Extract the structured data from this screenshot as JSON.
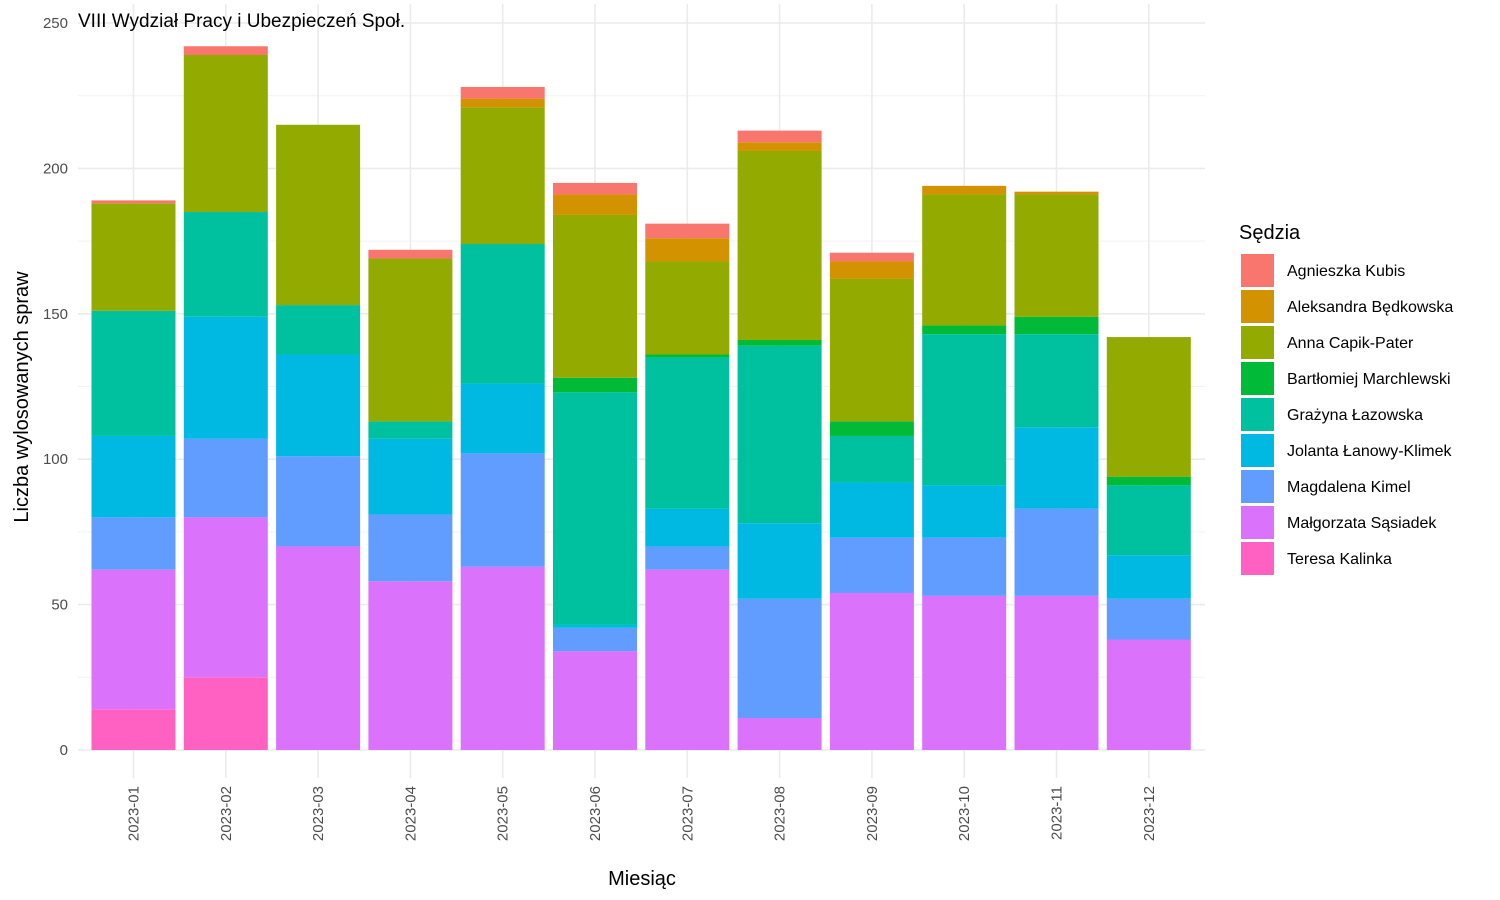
{
  "chart_data": {
    "type": "bar",
    "stacked": true,
    "title": "VIII Wydział Pracy i Ubezpieczeń Społ.",
    "xlabel": "Miesiąc",
    "ylabel": "Liczba wylosowanych spraw",
    "ylim": [
      0,
      250
    ],
    "yticks": [
      0,
      50,
      100,
      150,
      200,
      250
    ],
    "grid": true,
    "legend_title": "Sędzia",
    "legend_position": "right",
    "categories": [
      "2023-01",
      "2023-02",
      "2023-03",
      "2023-04",
      "2023-05",
      "2023-06",
      "2023-07",
      "2023-08",
      "2023-09",
      "2023-10",
      "2023-11",
      "2023-12"
    ],
    "series": [
      {
        "name": "Teresa Kalinka",
        "color": "#FF61C3",
        "values": [
          14,
          25,
          0,
          0,
          0,
          0,
          0,
          0,
          0,
          0,
          0,
          0
        ]
      },
      {
        "name": "Małgorzata Sąsiadek",
        "color": "#DB72FB",
        "values": [
          48,
          55,
          70,
          58,
          63,
          34,
          62,
          11,
          54,
          53,
          53,
          38
        ]
      },
      {
        "name": "Magdalena Kimel",
        "color": "#619CFF",
        "values": [
          18,
          27,
          31,
          23,
          39,
          8,
          8,
          41,
          19,
          20,
          30,
          14
        ]
      },
      {
        "name": "Jolanta Łanowy-Klimek",
        "color": "#00B9E3",
        "values": [
          28,
          42,
          35,
          26,
          24,
          1,
          13,
          26,
          19,
          18,
          28,
          15
        ]
      },
      {
        "name": "Grażyna Łazowska",
        "color": "#00C19F",
        "values": [
          43,
          36,
          17,
          6,
          48,
          80,
          52,
          61,
          16,
          52,
          32,
          24
        ]
      },
      {
        "name": "Bartłomiej Marchlewski",
        "color": "#00BA38",
        "values": [
          0,
          0,
          0,
          0,
          0,
          5,
          1,
          2,
          5,
          3,
          6,
          3
        ]
      },
      {
        "name": "Anna Capik-Pater",
        "color": "#93AA00",
        "values": [
          37,
          54,
          62,
          56,
          47,
          56,
          32,
          65,
          49,
          45,
          42,
          48
        ]
      },
      {
        "name": "Aleksandra Będkowska",
        "color": "#D39200",
        "values": [
          0,
          0,
          0,
          0,
          3,
          7,
          8,
          3,
          6,
          3,
          1,
          0
        ]
      },
      {
        "name": "Agnieszka Kubis",
        "color": "#F8766D",
        "values": [
          1,
          3,
          0,
          3,
          4,
          4,
          5,
          4,
          3,
          0,
          0,
          0
        ]
      }
    ]
  }
}
